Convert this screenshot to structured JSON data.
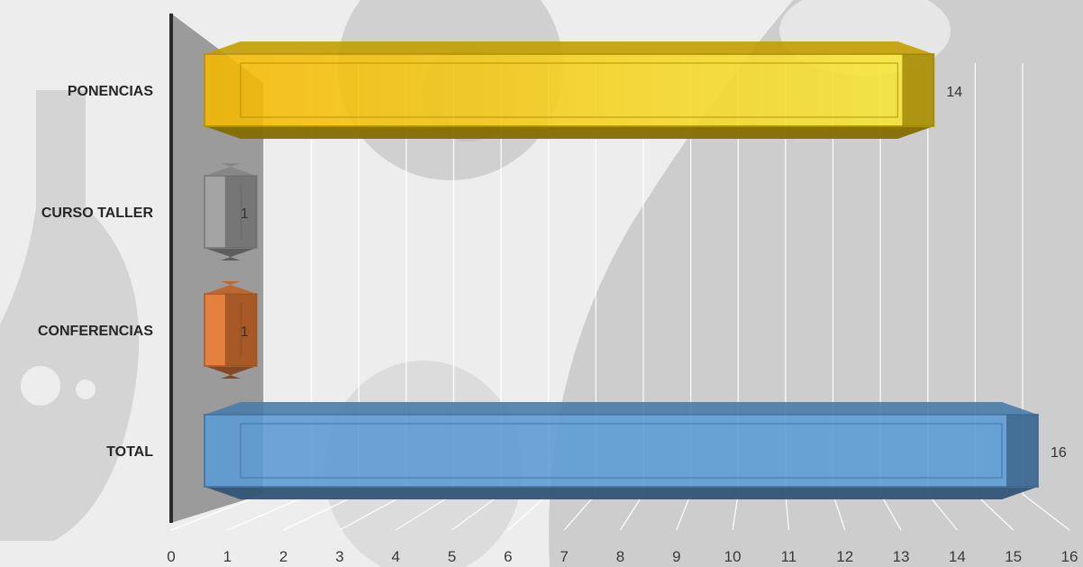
{
  "chart_data": {
    "type": "bar",
    "orientation": "horizontal",
    "style": "3d-box",
    "categories": [
      "PONENCIAS",
      "CURSO TALLER",
      "CONFERENCIAS",
      "TOTAL"
    ],
    "values": [
      14,
      1,
      1,
      16
    ],
    "data_labels": [
      "14",
      "1",
      "1",
      "16"
    ],
    "bar_colors": [
      "#f2c600",
      "#a6a6a6",
      "#ed7d31",
      "#5b9bd5"
    ],
    "xlim": [
      0,
      16
    ],
    "x_ticks": [
      "0",
      "1",
      "2",
      "3",
      "4",
      "5",
      "6",
      "7",
      "8",
      "9",
      "10",
      "11",
      "12",
      "13",
      "14",
      "15",
      "16"
    ],
    "title": "",
    "xlabel": "",
    "ylabel": "",
    "grid": true,
    "legend": "none"
  },
  "background": {
    "decoration_icons": [
      "flask-icon",
      "gear-icon",
      "globe-icon"
    ]
  }
}
